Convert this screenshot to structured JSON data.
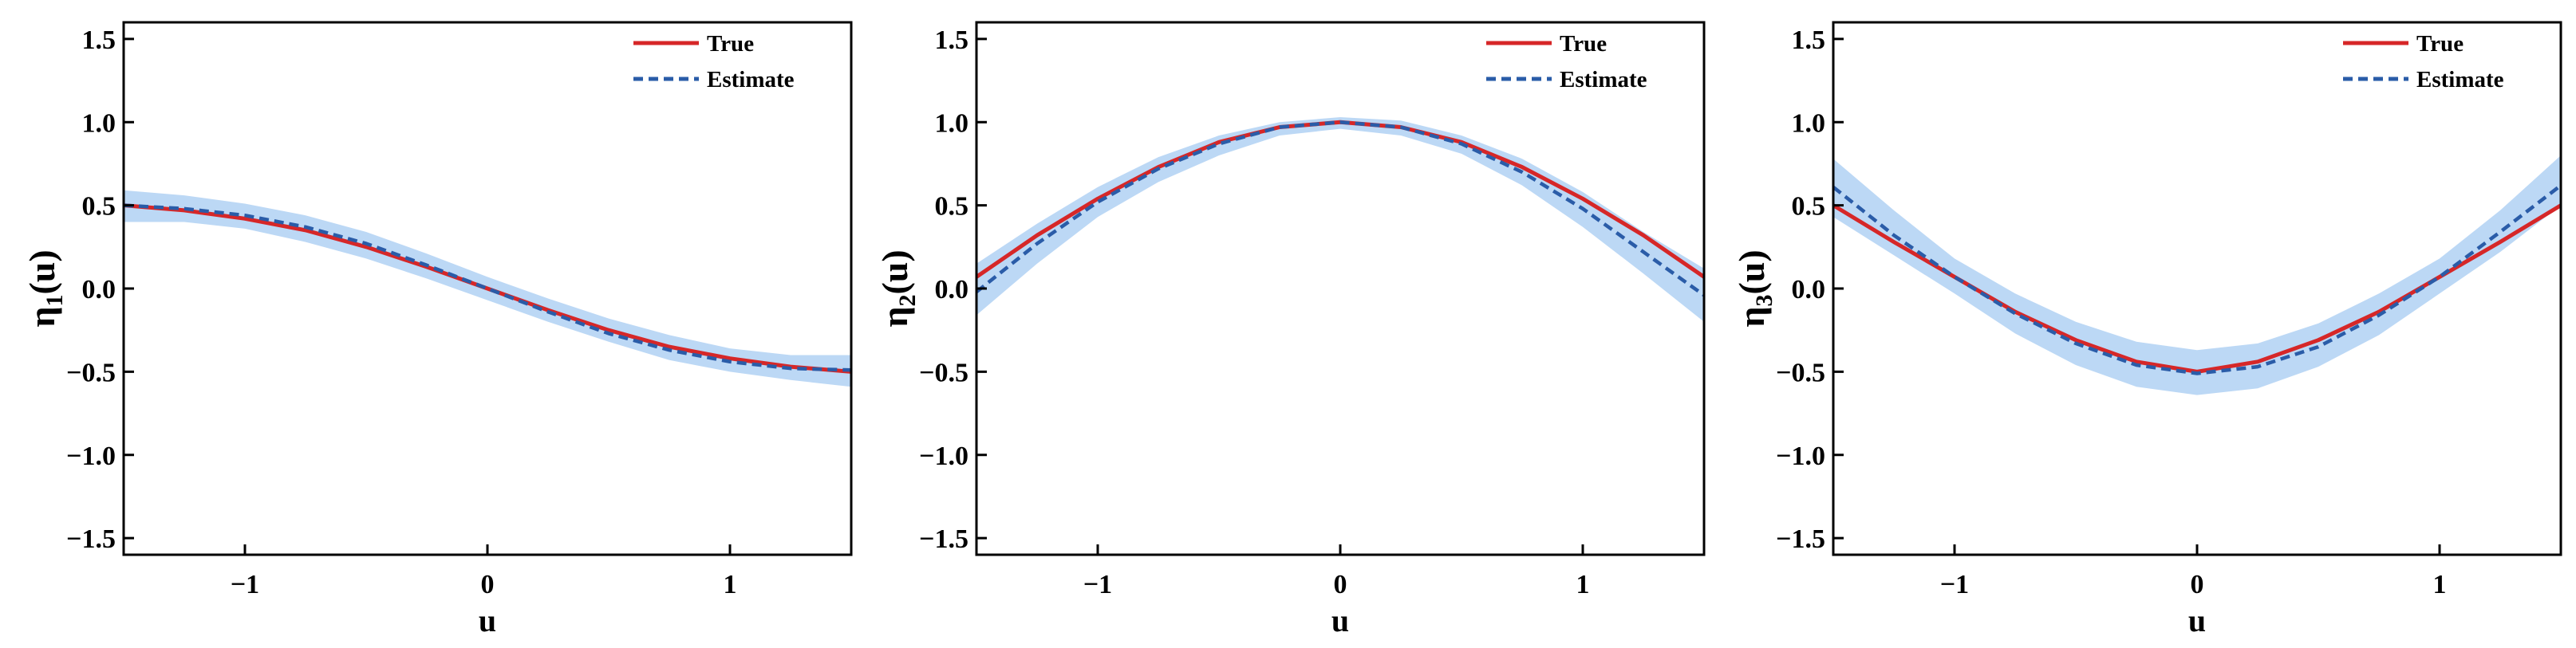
{
  "colors": {
    "true_line": "#d62728",
    "estimate_line": "#2a5ca8",
    "band": "#bcd8f5",
    "axis": "#000000"
  },
  "chart_data": [
    {
      "type": "line",
      "xlabel": "u",
      "ylabel_main": "η",
      "ylabel_sub": "1",
      "ylabel_tail": "(u)",
      "xlim": [
        -1.5,
        1.5
      ],
      "ylim": [
        -1.6,
        1.6
      ],
      "xticks": [
        -1,
        0,
        1
      ],
      "yticks": [
        -1.5,
        -1.0,
        -0.5,
        0.0,
        0.5,
        1.0,
        1.5
      ],
      "legend_position": "top-right",
      "x": [
        -1.5,
        -1.25,
        -1.0,
        -0.75,
        -0.5,
        -0.25,
        0.0,
        0.25,
        0.5,
        0.75,
        1.0,
        1.25,
        1.5
      ],
      "series": [
        {
          "name": "True",
          "style": "solid",
          "values": [
            0.5,
            0.47,
            0.42,
            0.35,
            0.25,
            0.13,
            0.0,
            -0.13,
            -0.25,
            -0.35,
            -0.42,
            -0.47,
            -0.5
          ]
        },
        {
          "name": "Estimate",
          "style": "dashed",
          "values": [
            0.5,
            0.48,
            0.44,
            0.37,
            0.27,
            0.14,
            0.0,
            -0.14,
            -0.27,
            -0.37,
            -0.44,
            -0.48,
            -0.49
          ]
        }
      ],
      "band": {
        "lower": [
          0.4,
          0.4,
          0.36,
          0.28,
          0.18,
          0.06,
          -0.07,
          -0.2,
          -0.32,
          -0.43,
          -0.5,
          -0.55,
          -0.59
        ],
        "upper": [
          0.59,
          0.56,
          0.51,
          0.44,
          0.34,
          0.21,
          0.07,
          -0.06,
          -0.18,
          -0.28,
          -0.36,
          -0.4,
          -0.4
        ]
      }
    },
    {
      "type": "line",
      "xlabel": "u",
      "ylabel_main": "η",
      "ylabel_sub": "2",
      "ylabel_tail": "(u)",
      "xlim": [
        -1.5,
        1.5
      ],
      "ylim": [
        -1.6,
        1.6
      ],
      "xticks": [
        -1,
        0,
        1
      ],
      "yticks": [
        -1.5,
        -1.0,
        -0.5,
        0.0,
        0.5,
        1.0,
        1.5
      ],
      "legend_position": "top-right",
      "x": [
        -1.5,
        -1.25,
        -1.0,
        -0.75,
        -0.5,
        -0.25,
        0.0,
        0.25,
        0.5,
        0.75,
        1.0,
        1.25,
        1.5
      ],
      "series": [
        {
          "name": "True",
          "style": "solid",
          "values": [
            0.07,
            0.32,
            0.54,
            0.73,
            0.88,
            0.97,
            1.0,
            0.97,
            0.88,
            0.73,
            0.54,
            0.32,
            0.07
          ]
        },
        {
          "name": "Estimate",
          "style": "dashed",
          "values": [
            -0.02,
            0.27,
            0.52,
            0.72,
            0.87,
            0.97,
            1.0,
            0.97,
            0.87,
            0.7,
            0.48,
            0.22,
            -0.04
          ]
        }
      ],
      "band": {
        "lower": [
          -0.16,
          0.15,
          0.43,
          0.64,
          0.8,
          0.92,
          0.96,
          0.92,
          0.81,
          0.62,
          0.37,
          0.09,
          -0.2
        ],
        "upper": [
          0.15,
          0.39,
          0.61,
          0.79,
          0.92,
          1.0,
          1.03,
          1.01,
          0.92,
          0.78,
          0.58,
          0.34,
          0.12
        ]
      }
    },
    {
      "type": "line",
      "xlabel": "u",
      "ylabel_main": "η",
      "ylabel_sub": "3",
      "ylabel_tail": "(u)",
      "xlim": [
        -1.5,
        1.5
      ],
      "ylim": [
        -1.6,
        1.6
      ],
      "xticks": [
        -1,
        0,
        1
      ],
      "yticks": [
        -1.5,
        -1.0,
        -0.5,
        0.0,
        0.5,
        1.0,
        1.5
      ],
      "legend_position": "top-right",
      "x": [
        -1.5,
        -1.25,
        -1.0,
        -0.75,
        -0.5,
        -0.25,
        0.0,
        0.25,
        0.5,
        0.75,
        1.0,
        1.25,
        1.5
      ],
      "series": [
        {
          "name": "True",
          "style": "solid",
          "values": [
            0.5,
            0.28,
            0.07,
            -0.14,
            -0.31,
            -0.44,
            -0.5,
            -0.44,
            -0.31,
            -0.14,
            0.07,
            0.28,
            0.5
          ]
        },
        {
          "name": "Estimate",
          "style": "dashed",
          "values": [
            0.61,
            0.32,
            0.07,
            -0.15,
            -0.33,
            -0.46,
            -0.51,
            -0.47,
            -0.35,
            -0.16,
            0.07,
            0.34,
            0.62
          ]
        }
      ],
      "band": {
        "lower": [
          0.43,
          0.2,
          -0.03,
          -0.27,
          -0.46,
          -0.59,
          -0.64,
          -0.6,
          -0.47,
          -0.28,
          -0.03,
          0.22,
          0.5
        ],
        "upper": [
          0.78,
          0.47,
          0.18,
          -0.03,
          -0.2,
          -0.32,
          -0.37,
          -0.33,
          -0.21,
          -0.03,
          0.18,
          0.47,
          0.8
        ]
      }
    }
  ]
}
